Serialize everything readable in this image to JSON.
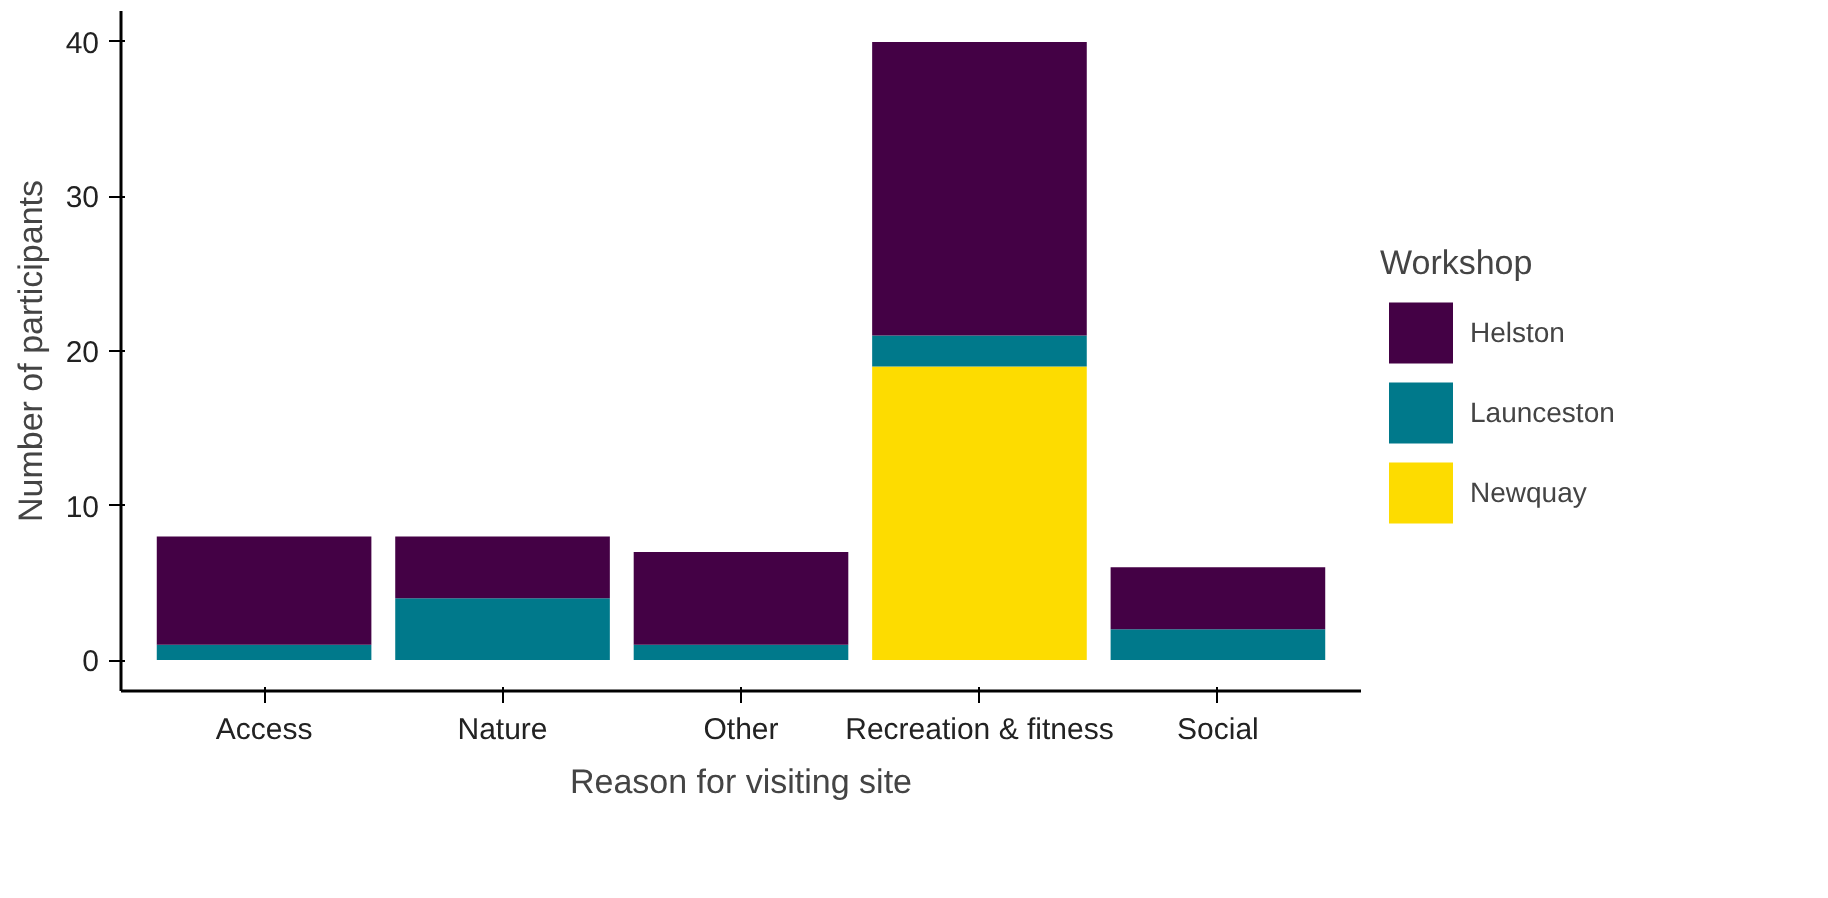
{
  "chart_data": {
    "type": "bar",
    "stacked": true,
    "xlabel": "Reason for visiting site",
    "ylabel": "Number of participants",
    "legend_title": "Workshop",
    "legend": "right",
    "grid": false,
    "categories": [
      "Access",
      "Nature",
      "Other",
      "Recreation & fitness",
      "Social"
    ],
    "ylim": [
      -2,
      42
    ],
    "yticks": [
      0,
      10,
      20,
      30,
      40
    ],
    "series": [
      {
        "name": "Newquay",
        "color": "#fddc00",
        "values": [
          null,
          null,
          null,
          19,
          null
        ]
      },
      {
        "name": "Launceston",
        "color": "#00798b",
        "values": [
          1,
          4,
          1,
          2,
          2
        ]
      },
      {
        "name": "Helston",
        "color": "#440145",
        "values": [
          7,
          4,
          6,
          19,
          4
        ]
      }
    ]
  }
}
